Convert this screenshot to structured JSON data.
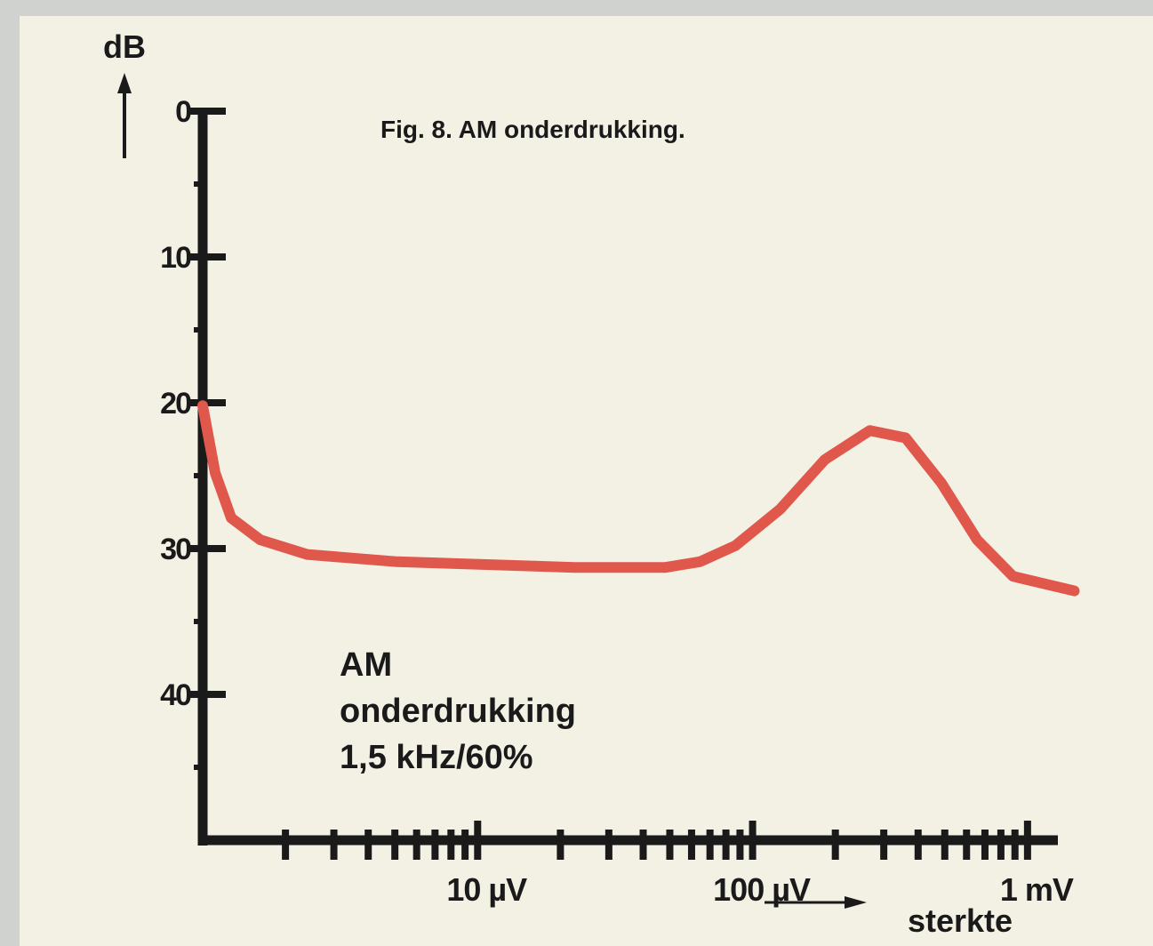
{
  "chart_data": {
    "type": "line",
    "title": "Fig. 8. AM onderdrukking.",
    "y_label": "dB",
    "x_label": "sterkte",
    "annotation": [
      "AM",
      "onderdrukking",
      "1,5 kHz/60%"
    ],
    "xscale": "log",
    "y_inverted": true,
    "xlim": [
      1,
      1600
    ],
    "ylim": [
      0,
      50
    ],
    "xticks": [
      {
        "value": 10,
        "label": "10 µV"
      },
      {
        "value": 100,
        "label": "100 µV"
      },
      {
        "value": 1000,
        "label": "1 mV"
      }
    ],
    "xminor_ticks": [
      2,
      3,
      4,
      5,
      6,
      7,
      8,
      9,
      20,
      30,
      40,
      50,
      60,
      70,
      80,
      90,
      200,
      300,
      400,
      500,
      600,
      700,
      800,
      900
    ],
    "yticks": [
      0,
      10,
      20,
      30,
      40
    ],
    "yminor_ticks": [
      5,
      15,
      25,
      35,
      45
    ],
    "series": [
      {
        "name": "AM onderdrukking",
        "color": "#e0574c",
        "x": [
          1,
          1.11,
          1.27,
          1.62,
          2.4,
          5.1,
          10.8,
          22.7,
          47.9,
          64.3,
          86.6,
          126,
          183,
          267,
          360,
          486,
          656,
          885,
          1480
        ],
        "values": [
          20.2,
          24.8,
          27.9,
          29.4,
          30.4,
          30.9,
          31.1,
          31.3,
          31.3,
          30.9,
          29.8,
          27.3,
          23.9,
          21.9,
          22.4,
          25.5,
          29.4,
          31.9,
          32.9
        ]
      }
    ]
  }
}
